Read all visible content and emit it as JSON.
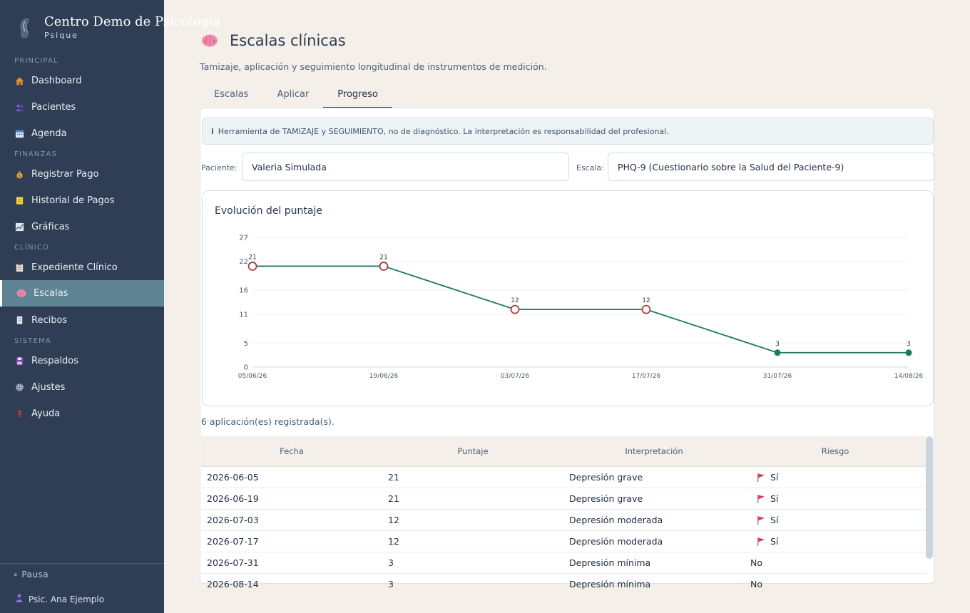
{
  "brand": {
    "title": "Centro Demo de Psicología",
    "subtitle": "Psique"
  },
  "sidebar": {
    "sections": [
      {
        "label": "PRINCIPAL",
        "items": [
          {
            "label": "Dashboard",
            "icon": "house-icon"
          },
          {
            "label": "Pacientes",
            "icon": "users-icon"
          },
          {
            "label": "Agenda",
            "icon": "calendar-icon"
          }
        ]
      },
      {
        "label": "FINANZAS",
        "items": [
          {
            "label": "Registrar Pago",
            "icon": "money-bag-icon"
          },
          {
            "label": "Historial de Pagos",
            "icon": "note-icon"
          },
          {
            "label": "Gráficas",
            "icon": "chart-icon"
          }
        ]
      },
      {
        "label": "CLÍNICO",
        "items": [
          {
            "label": "Expediente Clínico",
            "icon": "clipboard-icon"
          },
          {
            "label": "Escalas",
            "icon": "brain-icon",
            "active": true
          },
          {
            "label": "Recibos",
            "icon": "receipt-icon"
          }
        ]
      },
      {
        "label": "SISTEMA",
        "items": [
          {
            "label": "Respaldos",
            "icon": "floppy-icon"
          },
          {
            "label": "Ajustes",
            "icon": "gear-icon"
          },
          {
            "label": "Ayuda",
            "icon": "question-icon"
          }
        ]
      }
    ],
    "pause_label": "Pausa",
    "user_label": "Psic. Ana Ejemplo"
  },
  "page": {
    "title": "Escalas clínicas",
    "subtitle": "Tamizaje, aplicación y seguimiento longitudinal de instrumentos de medición.",
    "tabs": [
      "Escalas",
      "Aplicar",
      "Progreso"
    ],
    "active_tab": "Progreso"
  },
  "notice": {
    "icon": "i",
    "text": "Herramienta de TAMIZAJE y SEGUIMIENTO, no de diagnóstico. La interpretación es responsabilidad del profesional."
  },
  "filters": {
    "patient_label": "Paciente:",
    "patient_value": "Valeria Simulada",
    "scale_label": "Escala:",
    "scale_value": "PHQ-9 (Cuestionario sobre la Salud del Paciente-9)"
  },
  "chart_data": {
    "type": "line",
    "title": "Evolución del puntaje",
    "x": [
      "05/06/26",
      "19/06/26",
      "03/07/26",
      "17/07/26",
      "31/07/26",
      "14/08/26"
    ],
    "values": [
      21,
      21,
      12,
      12,
      3,
      3
    ],
    "yticks": [
      0,
      5,
      11,
      16,
      22,
      27
    ],
    "ylim": [
      0,
      27
    ],
    "risk": [
      true,
      true,
      true,
      true,
      false,
      false
    ],
    "line_color": "#1e7a5f",
    "risk_point_color": "#b03a3a",
    "grid": true
  },
  "count_text": "6 aplicación(es) registrada(s).",
  "table": {
    "headers": [
      "Fecha",
      "Puntaje",
      "Interpretación",
      "Riesgo"
    ],
    "rows": [
      {
        "fecha": "2026-06-05",
        "puntaje": "21",
        "interpretacion": "Depresión grave",
        "riesgo": "Sí",
        "flag": true
      },
      {
        "fecha": "2026-06-19",
        "puntaje": "21",
        "interpretacion": "Depresión grave",
        "riesgo": "Sí",
        "flag": true
      },
      {
        "fecha": "2026-07-03",
        "puntaje": "12",
        "interpretacion": "Depresión moderada",
        "riesgo": "Sí",
        "flag": true
      },
      {
        "fecha": "2026-07-17",
        "puntaje": "12",
        "interpretacion": "Depresión moderada",
        "riesgo": "Sí",
        "flag": true
      },
      {
        "fecha": "2026-07-31",
        "puntaje": "3",
        "interpretacion": "Depresión mínima",
        "riesgo": "No",
        "flag": false
      },
      {
        "fecha": "2026-08-14",
        "puntaje": "3",
        "interpretacion": "Depresión mínima",
        "riesgo": "No",
        "flag": false
      }
    ]
  }
}
